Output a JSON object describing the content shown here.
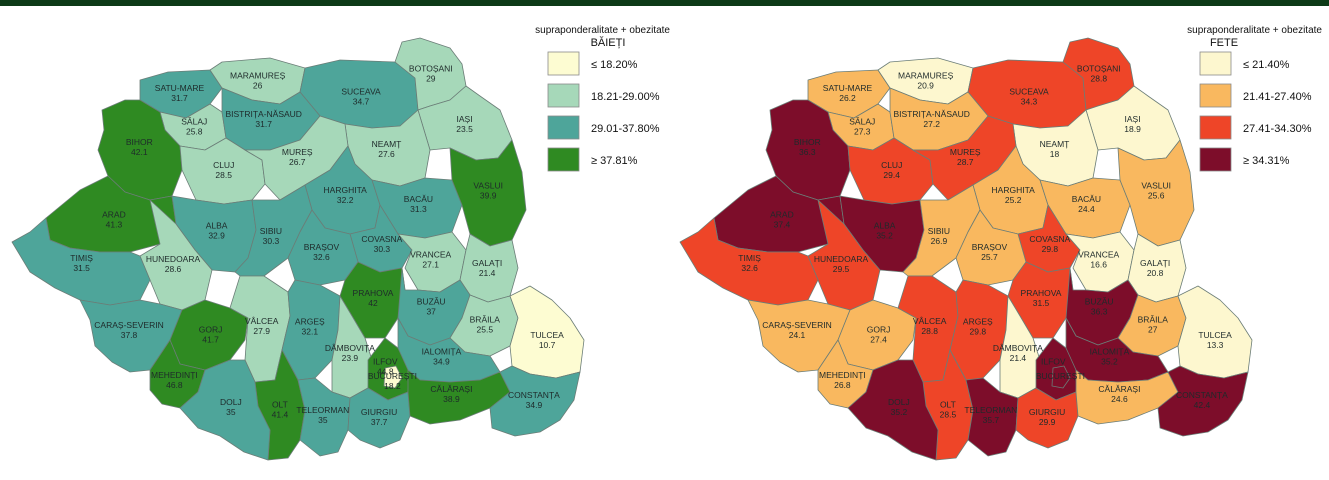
{
  "maps": [
    {
      "id": "boys",
      "legend": {
        "title": "supraponderalitate + obezitate",
        "subtitle": "BĂIEȚI",
        "classes": [
          {
            "label": "≤ 18.20%",
            "color": "#fdfcd2"
          },
          {
            "label": "18.21-29.00%",
            "color": "#a6d8b9"
          },
          {
            "label": "29.01-37.80%",
            "color": "#4ea59a"
          },
          {
            "label": "≥ 37.81%",
            "color": "#2f8a22"
          }
        ]
      },
      "counties": [
        {
          "name": "SATU-MARE",
          "value": "31.7",
          "cls": 2
        },
        {
          "name": "MARAMUREȘ",
          "value": "26",
          "cls": 1
        },
        {
          "name": "SUCEAVA",
          "value": "34.7",
          "cls": 2
        },
        {
          "name": "BOTOȘANI",
          "value": "29",
          "cls": 1
        },
        {
          "name": "SĂLAJ",
          "value": "25.8",
          "cls": 1
        },
        {
          "name": "BISTRIȚA-NĂSAUD",
          "value": "31.7",
          "cls": 2
        },
        {
          "name": "IAȘI",
          "value": "23.5",
          "cls": 1
        },
        {
          "name": "BIHOR",
          "value": "42.1",
          "cls": 3
        },
        {
          "name": "CLUJ",
          "value": "28.5",
          "cls": 1
        },
        {
          "name": "NEAMȚ",
          "value": "27.6",
          "cls": 1
        },
        {
          "name": "MUREȘ",
          "value": "26.7",
          "cls": 1
        },
        {
          "name": "HARGHITA",
          "value": "32.2",
          "cls": 2
        },
        {
          "name": "BACĂU",
          "value": "31.3",
          "cls": 2
        },
        {
          "name": "VASLUI",
          "value": "39.9",
          "cls": 3
        },
        {
          "name": "ARAD",
          "value": "41.3",
          "cls": 3
        },
        {
          "name": "ALBA",
          "value": "32.9",
          "cls": 2
        },
        {
          "name": "HUNEDOARA",
          "value": "28.6",
          "cls": 1
        },
        {
          "name": "SIBIU",
          "value": "30.3",
          "cls": 2
        },
        {
          "name": "COVASNA",
          "value": "30.3",
          "cls": 2
        },
        {
          "name": "BRAȘOV",
          "value": "32.6",
          "cls": 2
        },
        {
          "name": "VRANCEA",
          "value": "27.1",
          "cls": 1
        },
        {
          "name": "GALAȚI",
          "value": "21.4",
          "cls": 1
        },
        {
          "name": "TIMIȘ",
          "value": "31.5",
          "cls": 2
        },
        {
          "name": "CARAȘ-SEVERIN",
          "value": "37.8",
          "cls": 2
        },
        {
          "name": "GORJ",
          "value": "41.7",
          "cls": 3
        },
        {
          "name": "VÂLCEA",
          "value": "27.9",
          "cls": 1
        },
        {
          "name": "ARGEȘ",
          "value": "32.1",
          "cls": 2
        },
        {
          "name": "PRAHOVA",
          "value": "42",
          "cls": 3
        },
        {
          "name": "BUZĂU",
          "value": "37",
          "cls": 2
        },
        {
          "name": "BRĂILA",
          "value": "25.5",
          "cls": 1
        },
        {
          "name": "TULCEA",
          "value": "10.7",
          "cls": 0
        },
        {
          "name": "DÂMBOVIȚA",
          "value": "23.9",
          "cls": 1
        },
        {
          "name": "ILFOV",
          "value": "44.8",
          "cls": 3
        },
        {
          "name": "BUCUREȘTI",
          "value": "18.2",
          "cls": 0
        },
        {
          "name": "IALOMIȚA",
          "value": "34.9",
          "cls": 2
        },
        {
          "name": "MEHEDINȚI",
          "value": "46.8",
          "cls": 3
        },
        {
          "name": "OLT",
          "value": "41.4",
          "cls": 3
        },
        {
          "name": "DOLJ",
          "value": "35",
          "cls": 2
        },
        {
          "name": "TELEORMAN",
          "value": "35",
          "cls": 2
        },
        {
          "name": "GIURGIU",
          "value": "37.7",
          "cls": 2
        },
        {
          "name": "CĂLĂRAȘI",
          "value": "38.9",
          "cls": 3
        },
        {
          "name": "CONSTANȚA",
          "value": "34.9",
          "cls": 2
        }
      ]
    },
    {
      "id": "girls",
      "legend": {
        "title": "supraponderalitate + obezitate",
        "subtitle": "FETE",
        "classes": [
          {
            "label": "≤ 21.40%",
            "color": "#fdf7cf"
          },
          {
            "label": "21.41-27.40%",
            "color": "#f9b85f"
          },
          {
            "label": "27.41-34.30%",
            "color": "#ee4528"
          },
          {
            "label": "≥ 34.31%",
            "color": "#7d0d2a"
          }
        ]
      },
      "counties": [
        {
          "name": "SATU-MARE",
          "value": "26.2",
          "cls": 1
        },
        {
          "name": "MARAMUREȘ",
          "value": "20.9",
          "cls": 0
        },
        {
          "name": "SUCEAVA",
          "value": "34.3",
          "cls": 2
        },
        {
          "name": "BOTOȘANI",
          "value": "28.8",
          "cls": 2
        },
        {
          "name": "SĂLAJ",
          "value": "27.3",
          "cls": 1
        },
        {
          "name": "BISTRIȚA-NĂSAUD",
          "value": "27.2",
          "cls": 1
        },
        {
          "name": "IAȘI",
          "value": "18.9",
          "cls": 0
        },
        {
          "name": "BIHOR",
          "value": "36.3",
          "cls": 3
        },
        {
          "name": "CLUJ",
          "value": "29.4",
          "cls": 2
        },
        {
          "name": "NEAMȚ",
          "value": "18",
          "cls": 0
        },
        {
          "name": "MUREȘ",
          "value": "28.7",
          "cls": 2
        },
        {
          "name": "HARGHITA",
          "value": "25.2",
          "cls": 1
        },
        {
          "name": "BACĂU",
          "value": "24.4",
          "cls": 1
        },
        {
          "name": "VASLUI",
          "value": "25.6",
          "cls": 1
        },
        {
          "name": "ARAD",
          "value": "37.4",
          "cls": 3
        },
        {
          "name": "ALBA",
          "value": "35.2",
          "cls": 3
        },
        {
          "name": "HUNEDOARA",
          "value": "29.5",
          "cls": 2
        },
        {
          "name": "SIBIU",
          "value": "26.9",
          "cls": 1
        },
        {
          "name": "COVASNA",
          "value": "29.8",
          "cls": 2
        },
        {
          "name": "BRAȘOV",
          "value": "25.7",
          "cls": 1
        },
        {
          "name": "VRANCEA",
          "value": "16.6",
          "cls": 0
        },
        {
          "name": "GALAȚI",
          "value": "20.8",
          "cls": 0
        },
        {
          "name": "TIMIȘ",
          "value": "32.6",
          "cls": 2
        },
        {
          "name": "CARAȘ-SEVERIN",
          "value": "24.1",
          "cls": 1
        },
        {
          "name": "GORJ",
          "value": "27.4",
          "cls": 1
        },
        {
          "name": "VÂLCEA",
          "value": "28.8",
          "cls": 2
        },
        {
          "name": "ARGEȘ",
          "value": "29.8",
          "cls": 2
        },
        {
          "name": "PRAHOVA",
          "value": "31.5",
          "cls": 2
        },
        {
          "name": "BUZĂU",
          "value": "36.3",
          "cls": 3
        },
        {
          "name": "BRĂILA",
          "value": "27",
          "cls": 1
        },
        {
          "name": "TULCEA",
          "value": "13.3",
          "cls": 0
        },
        {
          "name": "DÂMBOVIȚA",
          "value": "21.4",
          "cls": 0
        },
        {
          "name": "ILFOV",
          "value": "",
          "cls": 3
        },
        {
          "name": "BUCUREȘTI",
          "value": "",
          "cls": 3
        },
        {
          "name": "IALOMIȚA",
          "value": "35.2",
          "cls": 3
        },
        {
          "name": "MEHEDINȚI",
          "value": "26.8",
          "cls": 1
        },
        {
          "name": "OLT",
          "value": "28.5",
          "cls": 2
        },
        {
          "name": "DOLJ",
          "value": "35.2",
          "cls": 3
        },
        {
          "name": "TELEORMAN",
          "value": "35.7",
          "cls": 3
        },
        {
          "name": "GIURGIU",
          "value": "29.9",
          "cls": 2
        },
        {
          "name": "CĂLĂRAȘI",
          "value": "24.6",
          "cls": 1
        },
        {
          "name": "CONSTANȚA",
          "value": "42.4",
          "cls": 3
        }
      ]
    }
  ]
}
